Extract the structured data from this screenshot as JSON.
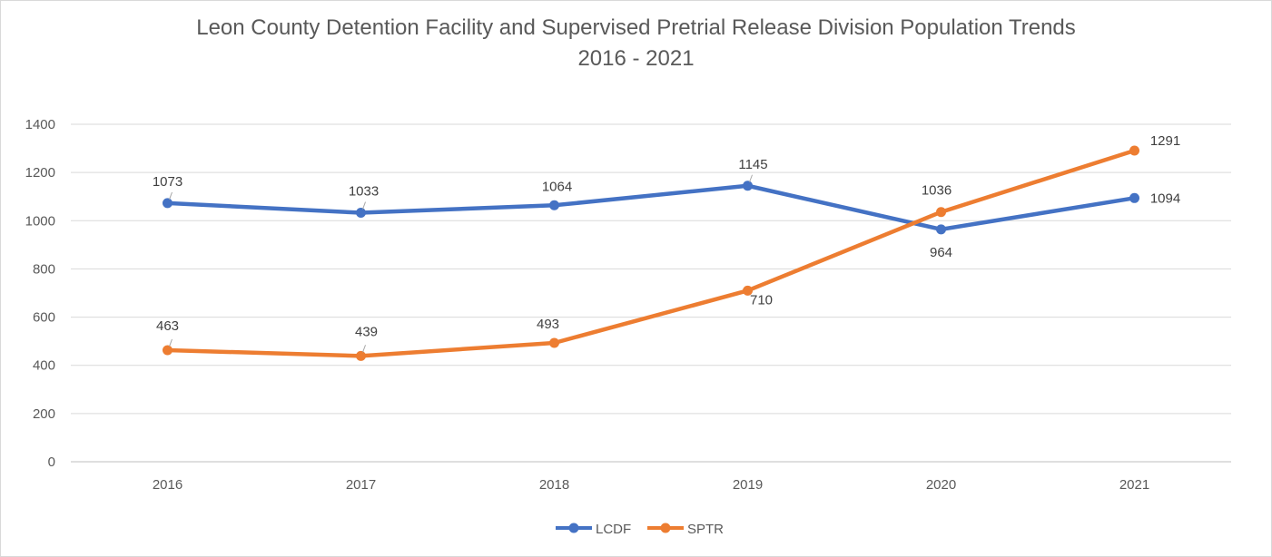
{
  "chart_data": {
    "type": "line",
    "title": "Leon County Detention Facility and Supervised  Pretrial Release Division Population Trends",
    "subtitle": "2016 - 2021",
    "categories": [
      "2016",
      "2017",
      "2018",
      "2019",
      "2020",
      "2021"
    ],
    "series": [
      {
        "name": "LCDF",
        "color": "#4472C4",
        "values": [
          1073,
          1033,
          1064,
          1145,
          964,
          1094
        ],
        "labels": [
          "1073",
          "1033",
          "1064",
          "1145",
          "964",
          "1094"
        ]
      },
      {
        "name": "SPTR",
        "color": "#ED7D31",
        "values": [
          463,
          439,
          493,
          710,
          1036,
          1291
        ],
        "labels": [
          "463",
          "439",
          "493",
          "710",
          "1036",
          "1291"
        ]
      }
    ],
    "ylim": [
      0,
      1400
    ],
    "yticks": [
      "0",
      "200",
      "400",
      "600",
      "800",
      "1000",
      "1200",
      "1400"
    ],
    "xlabel": "",
    "ylabel": "",
    "grid": true,
    "legend": "bottom"
  }
}
